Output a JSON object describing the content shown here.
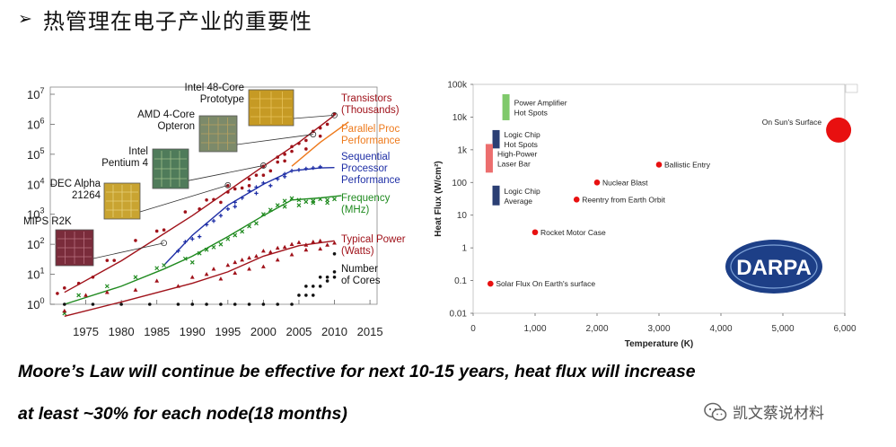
{
  "slide": {
    "title": "热管理在电子产业的重要性",
    "bullet": "➢",
    "caption_line1": "Moore’s Law will continue be effective for next 10-15 years, heat flux will increase",
    "caption_line2": "at least ~30% for each node(18 months)",
    "watermark": "凯文蔡说材料",
    "colors": {
      "transistors": "#a0121a",
      "parallel": "#ee7a1c",
      "sequential": "#1f2fa6",
      "frequency": "#1f8a1f",
      "power": "#a0121a",
      "cores": "#111111",
      "heat_dot": "#e81010",
      "bar_green": "#7fc96b",
      "bar_navy": "#2b3f74",
      "bar_pink": "#ec6e6e",
      "darpa_blue": "#1d3f87"
    }
  },
  "chart_data": [
    {
      "type": "scatter",
      "title": "",
      "xlabel": "",
      "ylabel": "",
      "yscale": "log",
      "xlim": [
        1970,
        2016
      ],
      "ylim": [
        1,
        10000000
      ],
      "x_ticks": [
        "1975",
        "1980",
        "1985",
        "1990",
        "1995",
        "2000",
        "2005",
        "2010",
        "2015"
      ],
      "y_ticks": [
        "10^0",
        "10^1",
        "10^2",
        "10^3",
        "10^4",
        "10^5",
        "10^6",
        "10^7"
      ],
      "series": [
        {
          "name": "Transistors",
          "label_lines": [
            "Transistors",
            "(Thousands)"
          ],
          "color": "#a0121a",
          "marker": "dot",
          "trend": [
            [
              1972,
              2.5
            ],
            [
              1980,
              28
            ],
            [
              1990,
              900
            ],
            [
              2000,
              40000
            ],
            [
              2005,
              250000
            ],
            [
              2010,
              2000000
            ]
          ],
          "points": [
            [
              1971,
              2.3
            ],
            [
              1972,
              3.5
            ],
            [
              1974,
              5
            ],
            [
              1976,
              8
            ],
            [
              1978,
              29
            ],
            [
              1979,
              29
            ],
            [
              1982,
              134
            ],
            [
              1985,
              275
            ],
            [
              1986,
              300
            ],
            [
              1989,
              1200
            ],
            [
              1991,
              1500
            ],
            [
              1993,
              3100
            ],
            [
              1994,
              2500
            ],
            [
              1995,
              5500
            ],
            [
              1996,
              7000
            ],
            [
              1997,
              7500
            ],
            [
              1998,
              9000
            ],
            [
              1999,
              20000
            ],
            [
              2000,
              40000
            ],
            [
              2001,
              28000
            ],
            [
              2002,
              55000
            ],
            [
              2003,
              100000
            ],
            [
              2004,
              125000
            ],
            [
              2005,
              230000
            ],
            [
              2006,
              290000
            ],
            [
              2007,
              580000
            ],
            [
              2008,
              750000
            ],
            [
              2009,
              1000000
            ],
            [
              2010,
              2200000
            ],
            [
              1992,
              3000
            ],
            [
              1995,
              9000
            ],
            [
              1998,
              15000
            ],
            [
              2003,
              60000
            ],
            [
              2006,
              150000
            ],
            [
              2008,
              400000
            ],
            [
              2000,
              20000
            ],
            [
              2002,
              80000
            ],
            [
              2004,
              180000
            ]
          ]
        },
        {
          "name": "Parallel Proc Performance",
          "label_lines": [
            "Parallel Proc",
            "Performance"
          ],
          "color": "#ee7a1c",
          "marker": "line",
          "trend": [
            [
              2004,
              40000
            ],
            [
              2008,
              250000
            ],
            [
              2012,
              1200000
            ]
          ],
          "points": []
        },
        {
          "name": "Sequential Processor Performance",
          "label_lines": [
            "Sequential",
            "Processor",
            "Performance"
          ],
          "color": "#1f2fa6",
          "marker": "plus",
          "trend": [
            [
              1986,
              20
            ],
            [
              1990,
              200
            ],
            [
              1995,
              2000
            ],
            [
              2000,
              10000
            ],
            [
              2004,
              28000
            ],
            [
              2008,
              35000
            ],
            [
              2010,
              36000
            ]
          ],
          "points": [
            [
              1988,
              60
            ],
            [
              1989,
              120
            ],
            [
              1990,
              150
            ],
            [
              1991,
              180
            ],
            [
              1992,
              450
            ],
            [
              1993,
              600
            ],
            [
              1994,
              900
            ],
            [
              1995,
              1500
            ],
            [
              1996,
              2500
            ],
            [
              1997,
              3500
            ],
            [
              1998,
              6000
            ],
            [
              1999,
              5000
            ],
            [
              2000,
              11000
            ],
            [
              2001,
              9000
            ],
            [
              2002,
              15000
            ],
            [
              2003,
              22000
            ],
            [
              2004,
              28000
            ],
            [
              2005,
              30000
            ],
            [
              2006,
              33000
            ],
            [
              2007,
              35000
            ],
            [
              2008,
              38000
            ],
            [
              1996,
              1800
            ],
            [
              1999,
              8000
            ],
            [
              2003,
              18000
            ]
          ]
        },
        {
          "name": "Frequency",
          "label_lines": [
            "Frequency",
            "(MHz)"
          ],
          "color": "#1f8a1f",
          "marker": "cross",
          "trend": [
            [
              1972,
              1
            ],
            [
              1980,
              4
            ],
            [
              1986,
              15
            ],
            [
              1990,
              40
            ],
            [
              1995,
              180
            ],
            [
              2000,
              900
            ],
            [
              2004,
              3000
            ],
            [
              2008,
              3500
            ],
            [
              2011,
              4200
            ]
          ],
          "points": [
            [
              1972,
              0.5
            ],
            [
              1974,
              2
            ],
            [
              1978,
              4
            ],
            [
              1982,
              8
            ],
            [
              1985,
              16
            ],
            [
              1986,
              20
            ],
            [
              1989,
              33
            ],
            [
              1990,
              25
            ],
            [
              1991,
              50
            ],
            [
              1992,
              66
            ],
            [
              1993,
              80
            ],
            [
              1994,
              100
            ],
            [
              1995,
              150
            ],
            [
              1996,
              200
            ],
            [
              1997,
              266
            ],
            [
              1998,
              400
            ],
            [
              1999,
              500
            ],
            [
              2000,
              1000
            ],
            [
              2001,
              1400
            ],
            [
              2002,
              2000
            ],
            [
              2003,
              2800
            ],
            [
              2004,
              3400
            ],
            [
              2005,
              3000
            ],
            [
              2006,
              2600
            ],
            [
              2007,
              2800
            ],
            [
              2008,
              3200
            ],
            [
              2009,
              3000
            ],
            [
              2010,
              3200
            ],
            [
              2003,
              1800
            ],
            [
              2005,
              2000
            ],
            [
              2007,
              2400
            ],
            [
              2009,
              2400
            ]
          ]
        },
        {
          "name": "Typical Power",
          "label_lines": [
            "Typical Power",
            "(Watts)"
          ],
          "color": "#a0121a",
          "marker": "triangle",
          "trend": [
            [
              1972,
              0.4
            ],
            [
              1980,
              1.2
            ],
            [
              1990,
              5
            ],
            [
              1995,
              12
            ],
            [
              2000,
              40
            ],
            [
              2005,
              90
            ],
            [
              2010,
              130
            ]
          ],
          "points": [
            [
              1972,
              0.6
            ],
            [
              1975,
              2
            ],
            [
              1978,
              2.5
            ],
            [
              1982,
              3
            ],
            [
              1985,
              6
            ],
            [
              1988,
              4
            ],
            [
              1990,
              8
            ],
            [
              1992,
              10
            ],
            [
              1993,
              15
            ],
            [
              1995,
              20
            ],
            [
              1996,
              25
            ],
            [
              1997,
              30
            ],
            [
              1998,
              35
            ],
            [
              1999,
              40
            ],
            [
              2000,
              60
            ],
            [
              2001,
              55
            ],
            [
              2002,
              75
            ],
            [
              2003,
              80
            ],
            [
              2004,
              100
            ],
            [
              2005,
              115
            ],
            [
              2006,
              95
            ],
            [
              2007,
              120
            ],
            [
              2008,
              130
            ],
            [
              2009,
              95
            ],
            [
              2010,
              110
            ],
            [
              1994,
              7
            ],
            [
              1996,
              11
            ],
            [
              1998,
              15
            ],
            [
              2000,
              18
            ],
            [
              2002,
              30
            ],
            [
              2004,
              45
            ],
            [
              2006,
              65
            ],
            [
              2008,
              70
            ]
          ]
        },
        {
          "name": "Number of Cores",
          "label_lines": [
            "Number",
            "of Cores"
          ],
          "color": "#111111",
          "marker": "dot",
          "trend": [],
          "points": [
            [
              1972,
              1
            ],
            [
              1976,
              1
            ],
            [
              1980,
              1
            ],
            [
              1984,
              1
            ],
            [
              1988,
              1
            ],
            [
              1990,
              1
            ],
            [
              1992,
              1
            ],
            [
              1994,
              1
            ],
            [
              1996,
              1
            ],
            [
              1998,
              1
            ],
            [
              2000,
              1
            ],
            [
              2002,
              1
            ],
            [
              2004,
              1
            ],
            [
              2005,
              2
            ],
            [
              2006,
              2
            ],
            [
              2006,
              4
            ],
            [
              2007,
              4
            ],
            [
              2007,
              2
            ],
            [
              2008,
              4
            ],
            [
              2008,
              8
            ],
            [
              2009,
              6
            ],
            [
              2009,
              8
            ],
            [
              2010,
              12
            ],
            [
              2010,
              8
            ],
            [
              2010,
              48
            ]
          ]
        }
      ],
      "annotations": [
        {
          "lines": [
            "Intel 48-Core",
            "Prototype"
          ],
          "x": 2010,
          "y": 2000000
        },
        {
          "lines": [
            "AMD 4-Core",
            "Opteron"
          ],
          "x": 2007,
          "y": 460000
        },
        {
          "lines": [
            "Intel",
            "Pentium 4"
          ],
          "x": 2000,
          "y": 42000
        },
        {
          "lines": [
            "DEC Alpha",
            "21264"
          ],
          "x": 1995,
          "y": 9300
        },
        {
          "lines": [
            "MIPS R2K"
          ],
          "x": 1986,
          "y": 110
        }
      ]
    },
    {
      "type": "scatter",
      "title": "",
      "xlabel": "Temperature (K)",
      "ylabel": "Heat Flux (W/cm²)",
      "yscale": "log",
      "xlim": [
        0,
        6000
      ],
      "ylim": [
        0.01,
        100000
      ],
      "x_ticks": [
        "0",
        "1,000",
        "2,000",
        "3,000",
        "4,000",
        "5,000",
        "6,000"
      ],
      "y_ticks": [
        "0.01",
        "0.1",
        "1",
        "10",
        "100",
        "1k",
        "10k",
        "100k"
      ],
      "points": [
        {
          "label": "Solar Flux On Earth's surface",
          "x": 280,
          "y": 0.08
        },
        {
          "label": "Rocket Motor Case",
          "x": 1000,
          "y": 3
        },
        {
          "label": "Reentry from Earth Orbit",
          "x": 1670,
          "y": 30
        },
        {
          "label": "Nuclear Blast",
          "x": 2000,
          "y": 100
        },
        {
          "label": "Ballistic Entry",
          "x": 3000,
          "y": 350
        },
        {
          "label": "On Sun's Surface",
          "x": 5900,
          "y": 4000
        }
      ],
      "bars": [
        {
          "label_lines": [
            "Power Amplifier",
            "Hot Spots"
          ],
          "x": 530,
          "y_low": 8000,
          "y_high": 50000,
          "color": "#7fc96b"
        },
        {
          "label_lines": [
            "Logic Chip",
            "Hot Spots"
          ],
          "x": 370,
          "y_low": 1100,
          "y_high": 4000,
          "color": "#2b3f74"
        },
        {
          "label_lines": [
            "High-Power",
            "Laser Bar"
          ],
          "x": 260,
          "y_low": 200,
          "y_high": 1500,
          "color": "#ec6e6e"
        },
        {
          "label_lines": [
            "Logic Chip",
            "Average"
          ],
          "x": 370,
          "y_low": 20,
          "y_high": 80,
          "color": "#2b3f74"
        }
      ],
      "logo": "DARPA"
    }
  ]
}
